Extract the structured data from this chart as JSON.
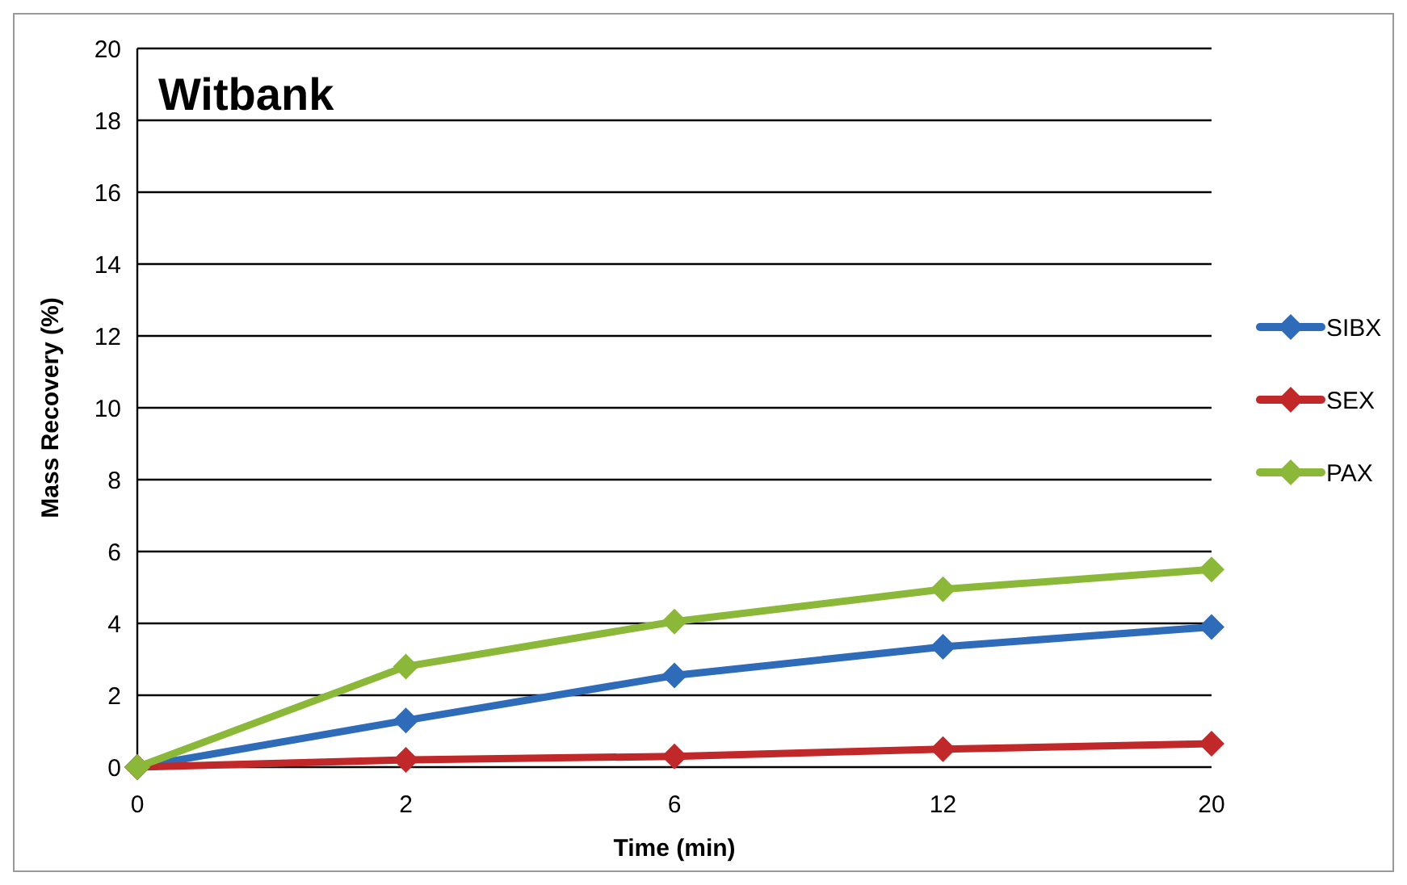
{
  "chart_data": {
    "type": "line",
    "title": "Witbank",
    "xlabel": "Time (min)",
    "ylabel": "Mass Recovery (%)",
    "categories": [
      "0",
      "2",
      "6",
      "12",
      "20"
    ],
    "series": [
      {
        "name": "SIBX",
        "color": "#2e6bb8",
        "values": [
          0,
          1.3,
          2.55,
          3.35,
          3.9
        ]
      },
      {
        "name": "SEX",
        "color": "#c0282a",
        "values": [
          0,
          0.2,
          0.3,
          0.5,
          0.65
        ]
      },
      {
        "name": "PAX",
        "color": "#8cb83a",
        "values": [
          0,
          2.8,
          4.05,
          4.95,
          5.5
        ]
      }
    ],
    "ylim": [
      0,
      20
    ],
    "yticks": [
      0,
      2,
      4,
      6,
      8,
      10,
      12,
      14,
      16,
      18,
      20
    ],
    "grid": "y",
    "legend": "right",
    "marker": "diamond",
    "line_style": "solid"
  }
}
